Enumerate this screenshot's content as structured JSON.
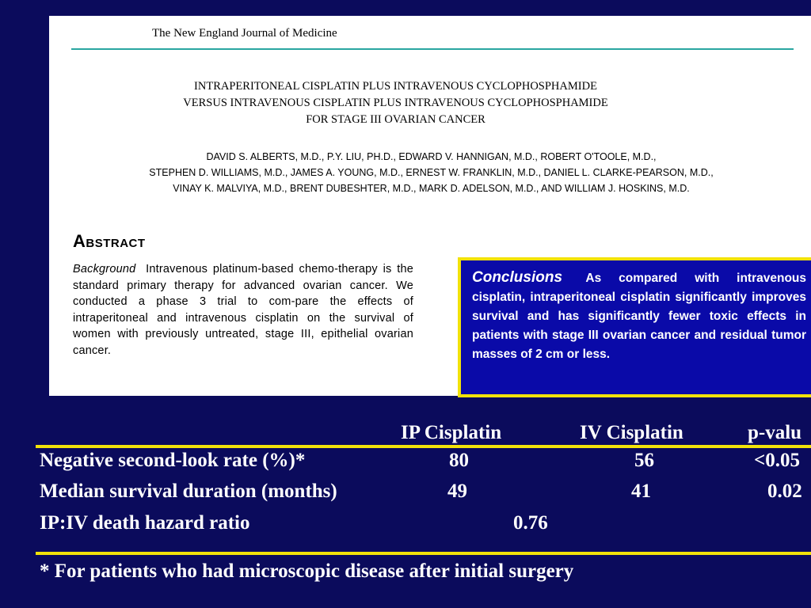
{
  "paper": {
    "journal": "The New England Journal of Medicine",
    "title_lines": [
      "INTRAPERITONEAL CISPLATIN PLUS INTRAVENOUS CYCLOPHOSPHAMIDE",
      "VERSUS INTRAVENOUS CISPLATIN PLUS INTRAVENOUS CYCLOPHOSPHAMIDE",
      "FOR STAGE III OVARIAN CANCER"
    ],
    "author_lines": [
      "DAVID S. ALBERTS, M.D., P.Y. LIU, PH.D., EDWARD V. HANNIGAN, M.D., ROBERT O'TOOLE, M.D.,",
      "STEPHEN D. WILLIAMS, M.D., JAMES A. YOUNG, M.D., ERNEST W. FRANKLIN, M.D., DANIEL L. CLARKE-PEARSON, M.D.,",
      "VINAY K. MALVIYA, M.D., BRENT DUBESHTER, M.D., MARK D. ADELSON, M.D., AND WILLIAM J. HOSKINS, M.D."
    ],
    "abstract_heading": "Abstract",
    "background_label": "Background",
    "background_text": "Intravenous platinum-based chemo-therapy is the standard primary therapy for advanced ovarian cancer. We conducted a phase 3 trial to com-pare the effects of intraperitoneal and intravenous cisplatin on the survival of women with previously untreated, stage III, epithelial ovarian cancer."
  },
  "conclusions": {
    "label": "Conclusions",
    "text": "As compared with intravenous cisplatin, intraperitoneal cisplatin significantly improves survival and has significantly fewer toxic effects in patients with stage III ovarian cancer and residual tumor masses of 2 cm or less."
  },
  "results_table": {
    "headers": {
      "ip": "IP Cisplatin",
      "iv": "IV Cisplatin",
      "p": "p-valu"
    },
    "rows": [
      {
        "label": "Negative second-look rate (%)*",
        "ip": "80",
        "iv": "56",
        "p": "<0.05"
      },
      {
        "label": "Median survival duration (months)",
        "ip": "49",
        "iv": "41",
        "p": "0.02"
      },
      {
        "label": "IP:IV death hazard ratio",
        "combined": "0.76"
      }
    ],
    "footnote": "* For patients who had microscopic disease after initial surgery"
  }
}
